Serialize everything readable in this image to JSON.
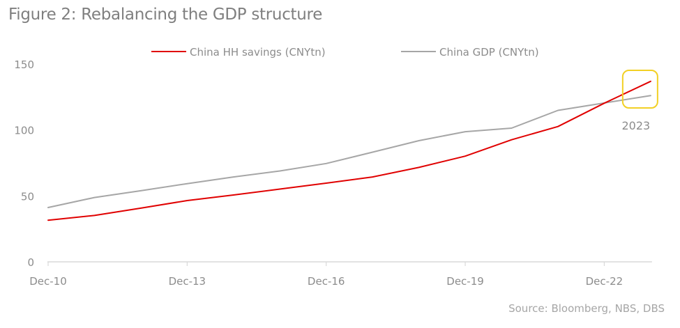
{
  "chart_data": {
    "type": "line",
    "title": "Figure 2: Rebalancing the GDP structure",
    "source": "Source: Bloomberg, NBS, DBS",
    "xlabel": "",
    "ylabel": "",
    "x": [
      "Dec-10",
      "Dec-11",
      "Dec-12",
      "Dec-13",
      "Dec-14",
      "Dec-15",
      "Dec-16",
      "Dec-17",
      "Dec-18",
      "Dec-19",
      "Dec-20",
      "Dec-21",
      "Dec-22",
      "Dec-23"
    ],
    "x_tick_labels": [
      "Dec-10",
      "Dec-13",
      "Dec-16",
      "Dec-19",
      "Dec-22"
    ],
    "y_ticks": [
      0,
      50,
      100,
      150
    ],
    "ylim": [
      0,
      150
    ],
    "grid": false,
    "legend_position": "top",
    "series": [
      {
        "name": "China HH savings (CNYtn)",
        "color": "#e00000",
        "values": [
          31.6,
          35.2,
          40.7,
          46.5,
          50.7,
          55.2,
          59.7,
          64.4,
          71.6,
          80.2,
          92.6,
          102.6,
          120.3,
          136.9
        ]
      },
      {
        "name": "China GDP (CNYtn)",
        "color": "#a6a6a6",
        "values": [
          41.2,
          48.8,
          53.9,
          59.3,
          64.4,
          68.9,
          74.6,
          83.2,
          91.9,
          98.7,
          101.4,
          114.9,
          120.5,
          126.1
        ]
      }
    ],
    "annotation": {
      "label": "2023",
      "target": "Dec-23",
      "box_color": "#f2d024"
    }
  }
}
